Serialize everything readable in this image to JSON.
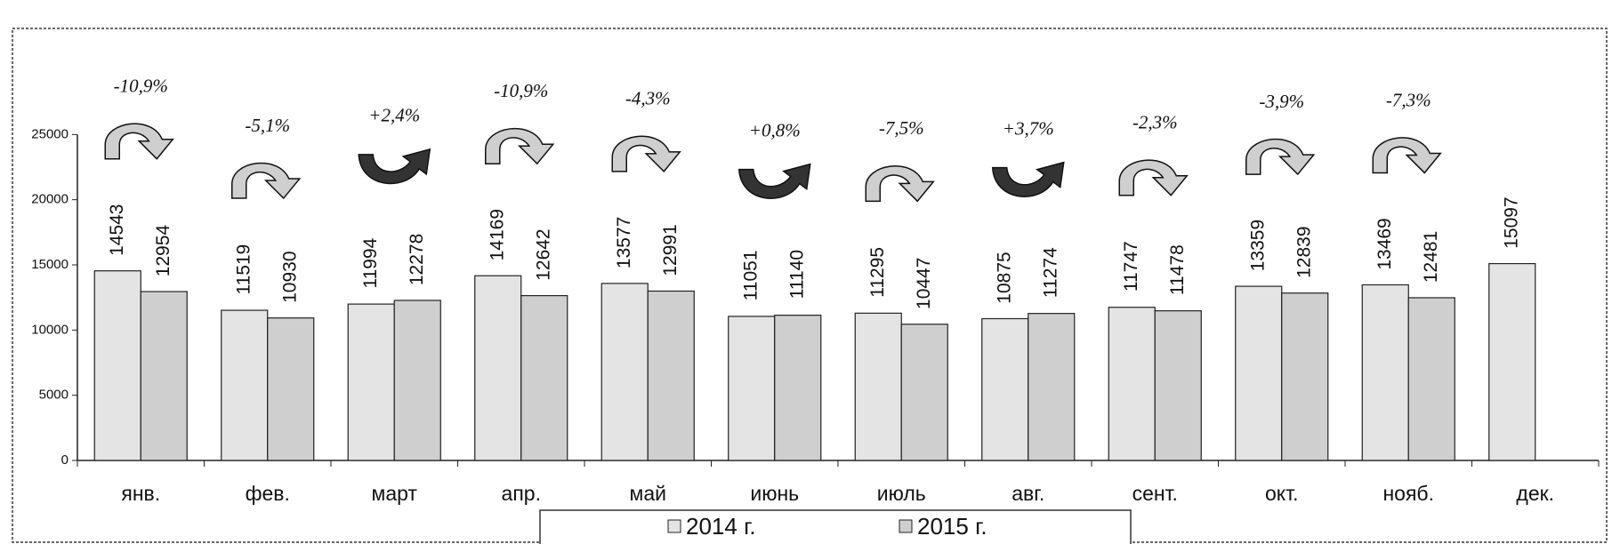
{
  "chart_data": {
    "type": "bar",
    "categories": [
      "янв.",
      "фев.",
      "март",
      "апр.",
      "май",
      "июнь",
      "июль",
      "авг.",
      "сент.",
      "окт.",
      "нояб.",
      "дек."
    ],
    "series": [
      {
        "name": "2014 г.",
        "color": "#e4e4e4",
        "values": [
          14543,
          11519,
          11994,
          14169,
          13577,
          11051,
          11295,
          10875,
          11747,
          13359,
          13469,
          15097
        ]
      },
      {
        "name": "2015 г.",
        "color": "#cfcfcf",
        "values": [
          12954,
          10930,
          12278,
          12642,
          12991,
          11140,
          10447,
          11274,
          11478,
          12839,
          12481,
          null
        ]
      }
    ],
    "ylim": [
      0,
      33000
    ],
    "yticks": [
      0,
      5000,
      10000,
      15000,
      20000,
      25000
    ],
    "annotations": [
      {
        "text": "-10,9%",
        "arrow": "down"
      },
      {
        "text": "-5,1%",
        "arrow": "down"
      },
      {
        "text": "+2,4%",
        "arrow": "up"
      },
      {
        "text": "-10,9%",
        "arrow": "down"
      },
      {
        "text": "-4,3%",
        "arrow": "down"
      },
      {
        "text": "+0,8%",
        "arrow": "up"
      },
      {
        "text": "-7,5%",
        "arrow": "down"
      },
      {
        "text": "+3,7%",
        "arrow": "up"
      },
      {
        "text": "-2,3%",
        "arrow": "down"
      },
      {
        "text": "-3,9%",
        "arrow": "down"
      },
      {
        "text": "-7,3%",
        "arrow": "down"
      }
    ]
  }
}
